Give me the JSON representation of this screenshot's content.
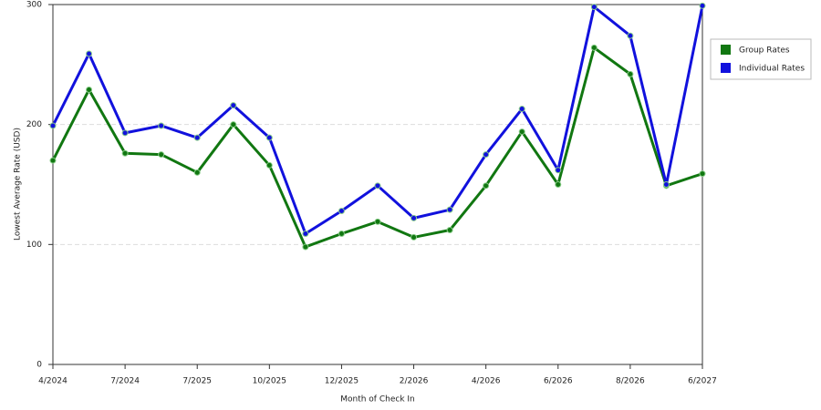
{
  "chart_data": {
    "type": "line",
    "x_label": "Month of Check In",
    "y_label": "Lowest Average Rate (USD)",
    "categories": [
      "4/2024",
      null,
      "7/2024",
      null,
      "7/2025",
      null,
      "10/2025",
      null,
      "12/2025",
      null,
      "2/2026",
      null,
      "4/2026",
      null,
      "6/2026",
      null,
      "8/2026",
      null,
      "6/2027"
    ],
    "series": [
      {
        "name": "Group Rates",
        "color": "#117711",
        "values": [
          170,
          229,
          176,
          175,
          160,
          200,
          166,
          98,
          109,
          119,
          106,
          112,
          149,
          194,
          150,
          264,
          242,
          149,
          159
        ]
      },
      {
        "name": "Individual Rates",
        "color": "#1111dd",
        "values": [
          199,
          259,
          193,
          199,
          189,
          216,
          189,
          109,
          128,
          149,
          122,
          129,
          175,
          213,
          162,
          298,
          274,
          150,
          299
        ]
      }
    ],
    "ylim": [
      0,
      300
    ],
    "yticks": [
      0,
      100,
      200,
      300
    ],
    "grid": true,
    "legend": "right"
  }
}
